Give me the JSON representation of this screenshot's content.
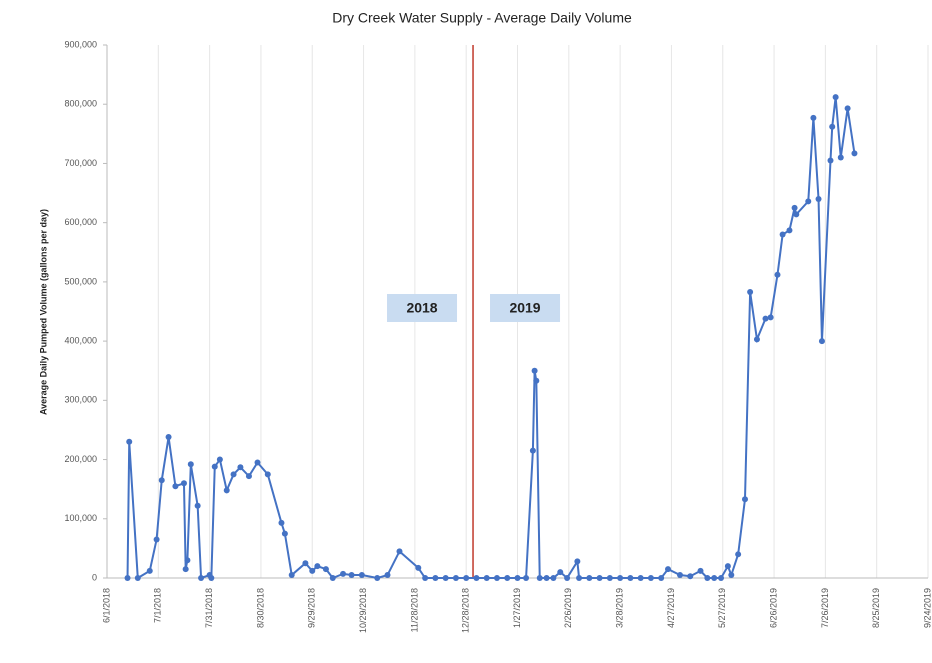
{
  "chart_data": {
    "type": "line",
    "title": "Dry Creek Water Supply - Average Daily Volume",
    "y_label": "Average Daily Pumped Volume (gallons per day)",
    "x": [
      "2018-06-13",
      "2018-06-14",
      "2018-06-19",
      "2018-06-26",
      "2018-06-30",
      "2018-07-03",
      "2018-07-07",
      "2018-07-11",
      "2018-07-16",
      "2018-07-17",
      "2018-07-18",
      "2018-07-20",
      "2018-07-24",
      "2018-07-26",
      "2018-07-31",
      "2018-08-01",
      "2018-08-03",
      "2018-08-06",
      "2018-08-10",
      "2018-08-14",
      "2018-08-18",
      "2018-08-23",
      "2018-08-28",
      "2018-09-03",
      "2018-09-11",
      "2018-09-13",
      "2018-09-17",
      "2018-09-25",
      "2018-09-29",
      "2018-10-02",
      "2018-10-07",
      "2018-10-11",
      "2018-10-17",
      "2018-10-22",
      "2018-10-28",
      "2018-11-06",
      "2018-11-12",
      "2018-11-19",
      "2018-11-30",
      "2018-12-04",
      "2018-12-10",
      "2018-12-16",
      "2018-12-22",
      "2018-12-28",
      "2019-01-03",
      "2019-01-09",
      "2019-01-15",
      "2019-01-21",
      "2019-01-27",
      "2019-02-01",
      "2019-02-05",
      "2019-02-06",
      "2019-02-07",
      "2019-02-09",
      "2019-02-13",
      "2019-02-17",
      "2019-02-21",
      "2019-02-25",
      "2019-03-03",
      "2019-03-04",
      "2019-03-10",
      "2019-03-16",
      "2019-03-22",
      "2019-03-28",
      "2019-04-03",
      "2019-04-09",
      "2019-04-15",
      "2019-04-21",
      "2019-04-25",
      "2019-05-02",
      "2019-05-08",
      "2019-05-14",
      "2019-05-18",
      "2019-05-22",
      "2019-05-26",
      "2019-05-30",
      "2019-06-01",
      "2019-06-05",
      "2019-06-09",
      "2019-06-12",
      "2019-06-16",
      "2019-06-21",
      "2019-06-24",
      "2019-06-28",
      "2019-07-01",
      "2019-07-05",
      "2019-07-08",
      "2019-07-09",
      "2019-07-16",
      "2019-07-19",
      "2019-07-22",
      "2019-07-24",
      "2019-07-29",
      "2019-07-30",
      "2019-08-01",
      "2019-08-04",
      "2019-08-08",
      "2019-08-12"
    ],
    "series": [
      {
        "name": "Average Daily Volume",
        "color": "#4472c4",
        "values": [
          0,
          230000,
          0,
          12000,
          65000,
          165000,
          238000,
          155000,
          160000,
          15000,
          30000,
          192000,
          122000,
          0,
          5000,
          0,
          188000,
          200000,
          148000,
          175000,
          187000,
          172000,
          195000,
          175000,
          93000,
          75000,
          5000,
          25000,
          12000,
          20000,
          15000,
          0,
          7000,
          5000,
          5000,
          0,
          5000,
          45000,
          17000,
          0,
          0,
          0,
          0,
          0,
          0,
          0,
          0,
          0,
          0,
          0,
          215000,
          350000,
          333000,
          0,
          0,
          0,
          10000,
          0,
          28000,
          0,
          0,
          0,
          0,
          0,
          0,
          0,
          0,
          0,
          15000,
          5000,
          3000,
          12000,
          0,
          0,
          0,
          20000,
          5000,
          40000,
          133000,
          483000,
          403000,
          438000,
          440000,
          512000,
          580000,
          587000,
          625000,
          614000,
          636000,
          777000,
          640000,
          400000,
          705000,
          762000,
          812000,
          710000,
          793000,
          717000
        ]
      }
    ],
    "xlim": [
      "2018-06-01",
      "2019-09-24"
    ],
    "xticks": [
      {
        "value": "2018-06-01",
        "label": "6/1/2018"
      },
      {
        "value": "2018-07-01",
        "label": "7/1/2018"
      },
      {
        "value": "2018-07-31",
        "label": "7/31/2018"
      },
      {
        "value": "2018-08-30",
        "label": "8/30/2018"
      },
      {
        "value": "2018-09-29",
        "label": "9/29/2018"
      },
      {
        "value": "2018-10-29",
        "label": "10/29/2018"
      },
      {
        "value": "2018-11-28",
        "label": "11/28/2018"
      },
      {
        "value": "2018-12-28",
        "label": "12/28/2018"
      },
      {
        "value": "2019-01-27",
        "label": "1/27/2019"
      },
      {
        "value": "2019-02-26",
        "label": "2/26/2019"
      },
      {
        "value": "2019-03-28",
        "label": "3/28/2019"
      },
      {
        "value": "2019-04-27",
        "label": "4/27/2019"
      },
      {
        "value": "2019-05-27",
        "label": "5/27/2019"
      },
      {
        "value": "2019-06-26",
        "label": "6/26/2019"
      },
      {
        "value": "2019-07-26",
        "label": "7/26/2019"
      },
      {
        "value": "2019-08-25",
        "label": "8/25/2019"
      },
      {
        "value": "2019-09-24",
        "label": "9/24/2019"
      }
    ],
    "ylim": [
      0,
      900000
    ],
    "yticks": [
      0,
      {
        "value": 100000,
        "label": "100,000"
      },
      {
        "value": 200000,
        "label": "200,000"
      },
      {
        "value": 300000,
        "label": "300,000"
      },
      {
        "value": 400000,
        "label": "400,000"
      },
      {
        "value": 500000,
        "label": "500,000"
      },
      {
        "value": 600000,
        "label": "600,000"
      },
      {
        "value": 700000,
        "label": "700,000"
      },
      {
        "value": 800000,
        "label": "800,000"
      },
      {
        "value": 900000,
        "label": "900,000"
      }
    ],
    "grid": true,
    "divider": {
      "x": "2019-01-01",
      "color": "#c0392b"
    },
    "annotations": [
      {
        "text": "2018"
      },
      {
        "text": "2019"
      }
    ]
  }
}
